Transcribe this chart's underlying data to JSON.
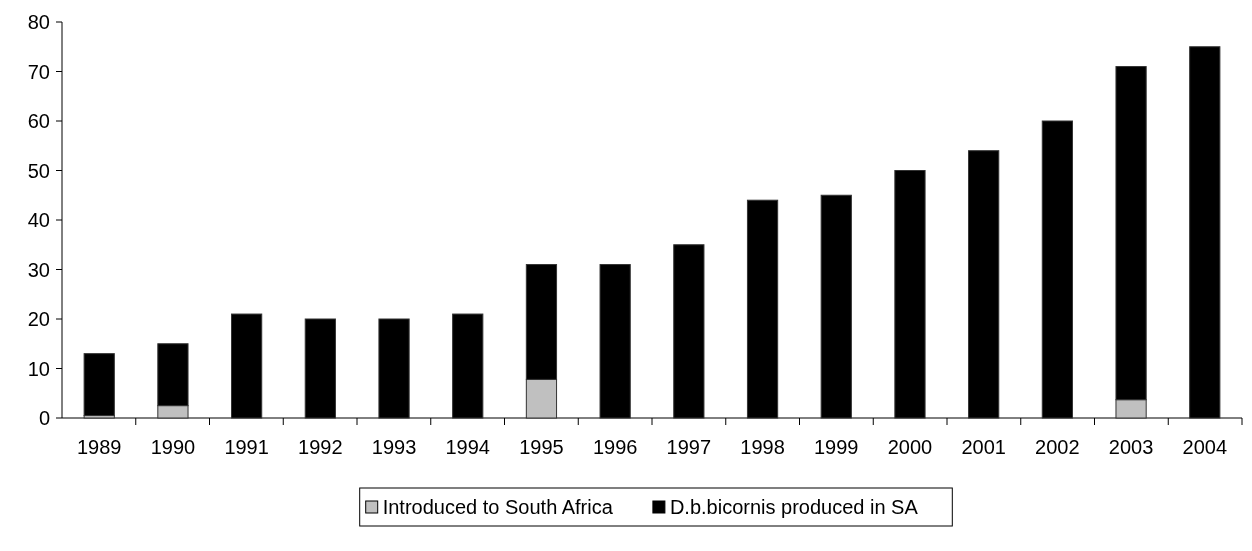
{
  "chart_data": {
    "type": "bar",
    "stacked": true,
    "categories": [
      "1989",
      "1990",
      "1991",
      "1992",
      "1993",
      "1994",
      "1995",
      "1996",
      "1997",
      "1998",
      "1999",
      "2000",
      "2001",
      "2002",
      "2003",
      "2004"
    ],
    "series": [
      {
        "name": "Introduced to South Africa",
        "color": "#c0c0c0",
        "values": [
          0.5,
          2.5,
          0,
          0,
          0,
          0,
          7.8,
          0,
          0,
          0,
          0,
          0,
          0,
          0,
          3.7,
          0
        ]
      },
      {
        "name": "D.b.bicornis produced in SA",
        "color": "#000000",
        "values": [
          12.5,
          12.5,
          21,
          20,
          20,
          21,
          23.2,
          31,
          35,
          44,
          45,
          50,
          54,
          60,
          67.3,
          75
        ]
      }
    ],
    "ylim": [
      0,
      80
    ],
    "yticks": [
      0,
      10,
      20,
      30,
      40,
      50,
      60,
      70,
      80
    ],
    "grid": false,
    "legend": "bottom"
  }
}
